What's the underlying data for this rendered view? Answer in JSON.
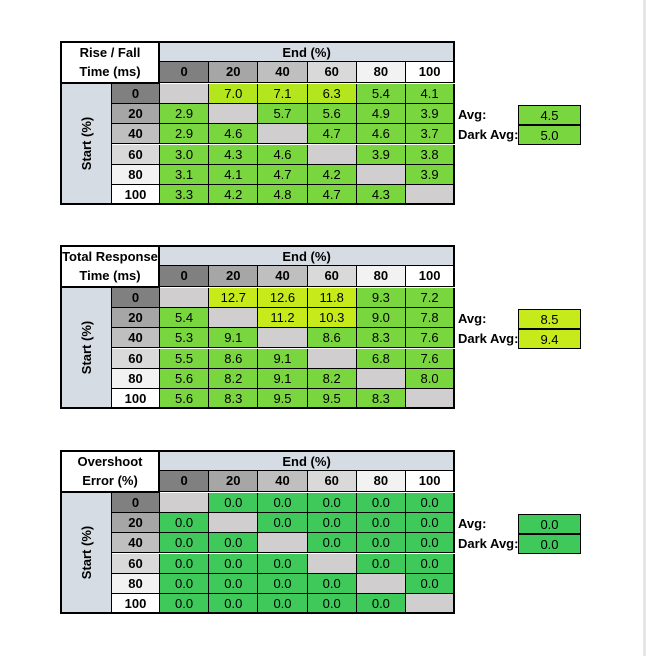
{
  "colors": {
    "header_blue": "#d6dce4",
    "gray_empty": "#d0cece",
    "scale": [
      "#ffffff",
      "#f2f2f2",
      "#e6e6e6",
      "#bfbfbf",
      "#a6a6a6",
      "#808080"
    ],
    "light_green": "#92d050",
    "mid_green": "#7ad63e",
    "yellow_green": "#b4e61e",
    "lime": "#c7ea1a",
    "overshoot_green": "#3ec95a"
  },
  "col_headers": [
    "0",
    "20",
    "40",
    "60",
    "80",
    "100"
  ],
  "row_headers": [
    "0",
    "20",
    "40",
    "60",
    "80",
    "100"
  ],
  "end_label": "End (%)",
  "start_label": "Start (%)",
  "avg_label": "Avg:",
  "dark_avg_label": "Dark Avg:",
  "tables": [
    {
      "title_line1": "Rise / Fall",
      "title_line2": "Time (ms)",
      "rows": [
        [
          "",
          "7.0",
          "7.1",
          "6.3",
          "5.4",
          "4.1"
        ],
        [
          "2.9",
          "",
          "5.7",
          "5.6",
          "4.9",
          "3.9"
        ],
        [
          "2.9",
          "4.6",
          "",
          "4.7",
          "4.6",
          "3.7"
        ],
        [
          "3.0",
          "4.3",
          "4.6",
          "",
          "3.9",
          "3.8"
        ],
        [
          "3.1",
          "4.1",
          "4.7",
          "4.2",
          "",
          "3.9"
        ],
        [
          "3.3",
          "4.2",
          "4.8",
          "4.7",
          "4.3",
          ""
        ]
      ],
      "colors": [
        [
          "g",
          "y",
          "y",
          "y",
          "m",
          "m"
        ],
        [
          "m",
          "g",
          "m",
          "m",
          "m",
          "m"
        ],
        [
          "m",
          "m",
          "g",
          "m",
          "m",
          "m"
        ],
        [
          "m",
          "m",
          "m",
          "g",
          "m",
          "m"
        ],
        [
          "m",
          "m",
          "m",
          "m",
          "g",
          "m"
        ],
        [
          "m",
          "m",
          "m",
          "m",
          "m",
          "g"
        ]
      ],
      "avg": "4.5",
      "dark_avg": "5.0"
    },
    {
      "title_line1": "Total Response",
      "title_line2": "Time (ms)",
      "rows": [
        [
          "",
          "12.7",
          "12.6",
          "11.8",
          "9.3",
          "7.2"
        ],
        [
          "5.4",
          "",
          "11.2",
          "10.3",
          "9.0",
          "7.8"
        ],
        [
          "5.3",
          "9.1",
          "",
          "8.6",
          "8.3",
          "7.6"
        ],
        [
          "5.5",
          "8.6",
          "9.1",
          "",
          "6.8",
          "7.6"
        ],
        [
          "5.6",
          "8.2",
          "9.1",
          "8.2",
          "",
          "8.0"
        ],
        [
          "5.6",
          "8.3",
          "9.5",
          "9.5",
          "8.3",
          ""
        ]
      ],
      "colors": [
        [
          "g",
          "l",
          "l",
          "l",
          "m",
          "m"
        ],
        [
          "m",
          "g",
          "l",
          "l",
          "m",
          "m"
        ],
        [
          "m",
          "m",
          "g",
          "m",
          "m",
          "m"
        ],
        [
          "m",
          "m",
          "m",
          "g",
          "m",
          "m"
        ],
        [
          "m",
          "m",
          "m",
          "m",
          "g",
          "m"
        ],
        [
          "m",
          "m",
          "m",
          "m",
          "m",
          "g"
        ]
      ],
      "avg": "8.5",
      "dark_avg": "9.4"
    },
    {
      "title_line1": "Overshoot",
      "title_line2": "Error (%)",
      "rows": [
        [
          "",
          "0.0",
          "0.0",
          "0.0",
          "0.0",
          "0.0"
        ],
        [
          "0.0",
          "",
          "0.0",
          "0.0",
          "0.0",
          "0.0"
        ],
        [
          "0.0",
          "0.0",
          "",
          "0.0",
          "0.0",
          "0.0"
        ],
        [
          "0.0",
          "0.0",
          "0.0",
          "",
          "0.0",
          "0.0"
        ],
        [
          "0.0",
          "0.0",
          "0.0",
          "0.0",
          "",
          "0.0"
        ],
        [
          "0.0",
          "0.0",
          "0.0",
          "0.0",
          "0.0",
          ""
        ]
      ],
      "colors": [
        [
          "g",
          "o",
          "o",
          "o",
          "o",
          "o"
        ],
        [
          "o",
          "g",
          "o",
          "o",
          "o",
          "o"
        ],
        [
          "o",
          "o",
          "g",
          "o",
          "o",
          "o"
        ],
        [
          "o",
          "o",
          "o",
          "g",
          "o",
          "o"
        ],
        [
          "o",
          "o",
          "o",
          "o",
          "g",
          "o"
        ],
        [
          "o",
          "o",
          "o",
          "o",
          "o",
          "g"
        ]
      ],
      "avg": "0.0",
      "dark_avg": "0.0"
    }
  ]
}
